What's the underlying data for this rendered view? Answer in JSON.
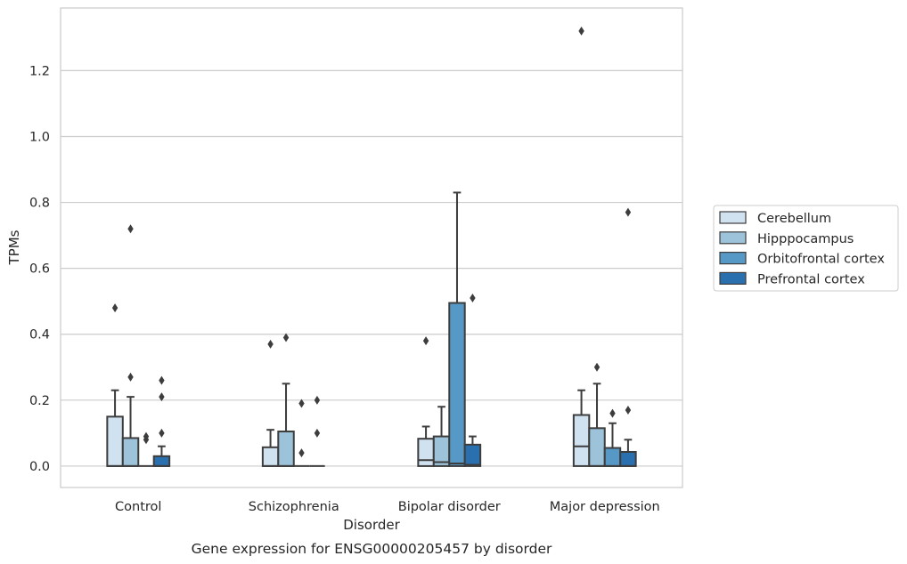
{
  "chart_data": {
    "type": "boxplot",
    "caption": "Gene expression for ENSG00000205457 by disorder",
    "xlabel": "Disorder",
    "ylabel": "TPMs",
    "ylim": [
      -0.065,
      1.39
    ],
    "yticks": [
      0.0,
      0.2,
      0.4,
      0.6,
      0.8,
      1.0,
      1.2
    ],
    "ytick_labels": [
      "0.0",
      "0.2",
      "0.4",
      "0.6",
      "0.8",
      "1.0",
      "1.2"
    ],
    "grid": "horizontal",
    "legend_position": "right",
    "categories": [
      "Control",
      "Schizophrenia",
      "Bipolar disorder",
      "Major depression"
    ],
    "series": [
      {
        "name": "Cerebellum",
        "color": "#d0e1f0",
        "boxes": [
          {
            "q1": 0.0,
            "median": 0.0,
            "q3": 0.15,
            "whisker_low": 0.0,
            "whisker_high": 0.23,
            "outliers": [
              0.48
            ]
          },
          {
            "q1": 0.0,
            "median": 0.0,
            "q3": 0.057,
            "whisker_low": 0.0,
            "whisker_high": 0.11,
            "outliers": [
              0.37
            ]
          },
          {
            "q1": 0.0,
            "median": 0.018,
            "q3": 0.083,
            "whisker_low": 0.0,
            "whisker_high": 0.12,
            "outliers": [
              0.38
            ]
          },
          {
            "q1": 0.0,
            "median": 0.06,
            "q3": 0.155,
            "whisker_low": 0.0,
            "whisker_high": 0.23,
            "outliers": [
              1.32
            ]
          }
        ]
      },
      {
        "name": "Hipppocampus",
        "color": "#9dc3da",
        "boxes": [
          {
            "q1": 0.0,
            "median": 0.0,
            "q3": 0.085,
            "whisker_low": 0.0,
            "whisker_high": 0.21,
            "outliers": [
              0.27,
              0.72
            ]
          },
          {
            "q1": 0.0,
            "median": 0.0,
            "q3": 0.105,
            "whisker_low": 0.0,
            "whisker_high": 0.25,
            "outliers": [
              0.39
            ]
          },
          {
            "q1": 0.0,
            "median": 0.012,
            "q3": 0.09,
            "whisker_low": 0.0,
            "whisker_high": 0.18,
            "outliers": []
          },
          {
            "q1": 0.0,
            "median": 0.0,
            "q3": 0.115,
            "whisker_low": 0.0,
            "whisker_high": 0.25,
            "outliers": [
              0.3
            ]
          }
        ]
      },
      {
        "name": "Orbitofrontal cortex",
        "color": "#5799c6",
        "boxes": [
          {
            "q1": 0.0,
            "median": 0.0,
            "q3": 0.0,
            "whisker_low": 0.0,
            "whisker_high": 0.0,
            "outliers": [
              0.08,
              0.09
            ]
          },
          {
            "q1": 0.0,
            "median": 0.0,
            "q3": 0.0,
            "whisker_low": 0.0,
            "whisker_high": 0.0,
            "outliers": [
              0.04,
              0.19
            ]
          },
          {
            "q1": 0.0,
            "median": 0.008,
            "q3": 0.495,
            "whisker_low": 0.0,
            "whisker_high": 0.83,
            "outliers": []
          },
          {
            "q1": 0.0,
            "median": 0.0,
            "q3": 0.055,
            "whisker_low": 0.0,
            "whisker_high": 0.13,
            "outliers": [
              0.16
            ]
          }
        ]
      },
      {
        "name": "Prefrontal cortex",
        "color": "#2a6fae",
        "boxes": [
          {
            "q1": 0.0,
            "median": 0.0,
            "q3": 0.03,
            "whisker_low": 0.0,
            "whisker_high": 0.06,
            "outliers": [
              0.1,
              0.21,
              0.26
            ]
          },
          {
            "q1": 0.0,
            "median": 0.0,
            "q3": 0.0,
            "whisker_low": 0.0,
            "whisker_high": 0.0,
            "outliers": [
              0.1,
              0.2
            ]
          },
          {
            "q1": 0.0,
            "median": 0.004,
            "q3": 0.065,
            "whisker_low": 0.0,
            "whisker_high": 0.09,
            "outliers": [
              0.51
            ]
          },
          {
            "q1": 0.0,
            "median": 0.0,
            "q3": 0.043,
            "whisker_low": 0.0,
            "whisker_high": 0.08,
            "outliers": [
              0.17,
              0.77
            ]
          }
        ]
      }
    ]
  }
}
